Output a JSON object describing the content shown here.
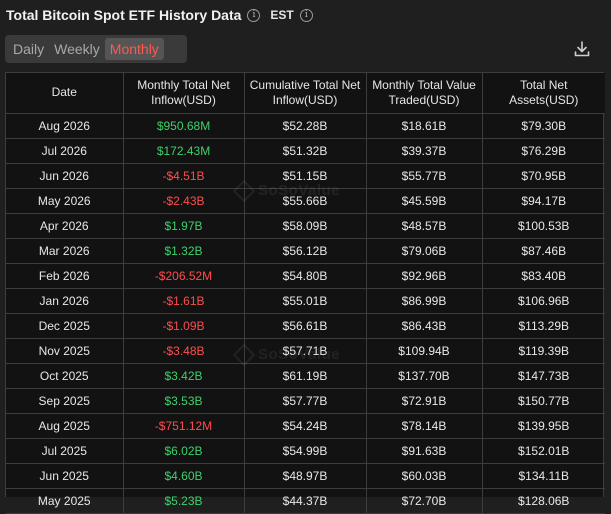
{
  "header": {
    "title": "Total Bitcoin Spot ETF History Data",
    "info_glyph": "i",
    "timezone": "EST"
  },
  "tabs": [
    {
      "label": "Daily",
      "active": false
    },
    {
      "label": "Weekly",
      "active": false
    },
    {
      "label": "Monthly",
      "active": true
    }
  ],
  "table": {
    "columns": [
      "Date",
      "Monthly Total Net Inflow(USD)",
      "Cumulative Total Net Inflow(USD)",
      "Monthly Total Value Traded(USD)",
      "Total Net Assets(USD)"
    ],
    "rows": [
      {
        "date": "Aug 2026",
        "inflow": "$950.68M",
        "sign": "pos",
        "cumulative": "$52.28B",
        "traded": "$18.61B",
        "assets": "$79.30B"
      },
      {
        "date": "Jul 2026",
        "inflow": "$172.43M",
        "sign": "pos",
        "cumulative": "$51.32B",
        "traded": "$39.37B",
        "assets": "$76.29B"
      },
      {
        "date": "Jun 2026",
        "inflow": "-$4.51B",
        "sign": "neg",
        "cumulative": "$51.15B",
        "traded": "$55.77B",
        "assets": "$70.95B"
      },
      {
        "date": "May 2026",
        "inflow": "-$2.43B",
        "sign": "neg",
        "cumulative": "$55.66B",
        "traded": "$45.59B",
        "assets": "$94.17B"
      },
      {
        "date": "Apr 2026",
        "inflow": "$1.97B",
        "sign": "pos",
        "cumulative": "$58.09B",
        "traded": "$48.57B",
        "assets": "$100.53B"
      },
      {
        "date": "Mar 2026",
        "inflow": "$1.32B",
        "sign": "pos",
        "cumulative": "$56.12B",
        "traded": "$79.06B",
        "assets": "$87.46B"
      },
      {
        "date": "Feb 2026",
        "inflow": "-$206.52M",
        "sign": "neg",
        "cumulative": "$54.80B",
        "traded": "$92.96B",
        "assets": "$83.40B"
      },
      {
        "date": "Jan 2026",
        "inflow": "-$1.61B",
        "sign": "neg",
        "cumulative": "$55.01B",
        "traded": "$86.99B",
        "assets": "$106.96B"
      },
      {
        "date": "Dec 2025",
        "inflow": "-$1.09B",
        "sign": "neg",
        "cumulative": "$56.61B",
        "traded": "$86.43B",
        "assets": "$113.29B"
      },
      {
        "date": "Nov 2025",
        "inflow": "-$3.48B",
        "sign": "neg",
        "cumulative": "$57.71B",
        "traded": "$109.94B",
        "assets": "$119.39B"
      },
      {
        "date": "Oct 2025",
        "inflow": "$3.42B",
        "sign": "pos",
        "cumulative": "$61.19B",
        "traded": "$137.70B",
        "assets": "$147.73B"
      },
      {
        "date": "Sep 2025",
        "inflow": "$3.53B",
        "sign": "pos",
        "cumulative": "$57.77B",
        "traded": "$72.91B",
        "assets": "$150.77B"
      },
      {
        "date": "Aug 2025",
        "inflow": "-$751.12M",
        "sign": "neg",
        "cumulative": "$54.24B",
        "traded": "$78.14B",
        "assets": "$139.95B"
      },
      {
        "date": "Jul 2025",
        "inflow": "$6.02B",
        "sign": "pos",
        "cumulative": "$54.99B",
        "traded": "$91.63B",
        "assets": "$152.01B"
      },
      {
        "date": "Jun 2025",
        "inflow": "$4.60B",
        "sign": "pos",
        "cumulative": "$48.97B",
        "traded": "$60.03B",
        "assets": "$134.11B"
      },
      {
        "date": "May 2025",
        "inflow": "$5.23B",
        "sign": "pos",
        "cumulative": "$44.37B",
        "traded": "$72.70B",
        "assets": "$128.06B"
      }
    ]
  },
  "watermark": "SoSoValue",
  "colors": {
    "positive": "#3dd16a",
    "negative": "#ff4d4d",
    "accent_tab": "#ff5a4e",
    "background": "#1f1f1f"
  },
  "icons": [
    "info-icon",
    "download-icon"
  ]
}
